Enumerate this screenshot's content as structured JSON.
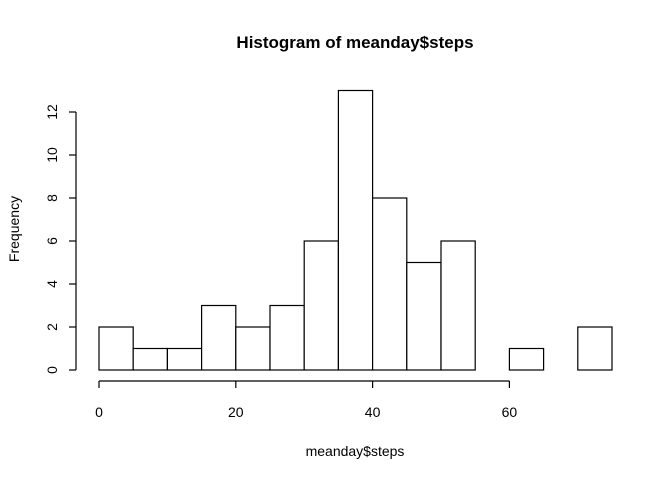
{
  "chart_data": {
    "type": "bar",
    "subtype": "histogram",
    "title": "Histogram of meanday$steps",
    "xlabel": "meanday$steps",
    "ylabel": "Frequency",
    "bin_width": 5,
    "bins": [
      {
        "start": 0,
        "end": 5,
        "count": 2
      },
      {
        "start": 5,
        "end": 10,
        "count": 1
      },
      {
        "start": 10,
        "end": 15,
        "count": 1
      },
      {
        "start": 15,
        "end": 20,
        "count": 3
      },
      {
        "start": 20,
        "end": 25,
        "count": 2
      },
      {
        "start": 25,
        "end": 30,
        "count": 3
      },
      {
        "start": 30,
        "end": 35,
        "count": 6
      },
      {
        "start": 35,
        "end": 40,
        "count": 13
      },
      {
        "start": 40,
        "end": 45,
        "count": 8
      },
      {
        "start": 45,
        "end": 50,
        "count": 5
      },
      {
        "start": 50,
        "end": 55,
        "count": 6
      },
      {
        "start": 55,
        "end": 60,
        "count": 0
      },
      {
        "start": 60,
        "end": 65,
        "count": 1
      },
      {
        "start": 65,
        "end": 70,
        "count": 0
      },
      {
        "start": 70,
        "end": 75,
        "count": 2
      }
    ],
    "xlim": [
      0,
      75
    ],
    "ylim": [
      0,
      13
    ],
    "x_ticks": [
      0,
      20,
      40,
      60
    ],
    "y_ticks": [
      0,
      2,
      4,
      6,
      8,
      10,
      12
    ],
    "grid": false,
    "legend": "none",
    "bar_fill": "#ffffff",
    "bar_stroke": "#000000"
  }
}
